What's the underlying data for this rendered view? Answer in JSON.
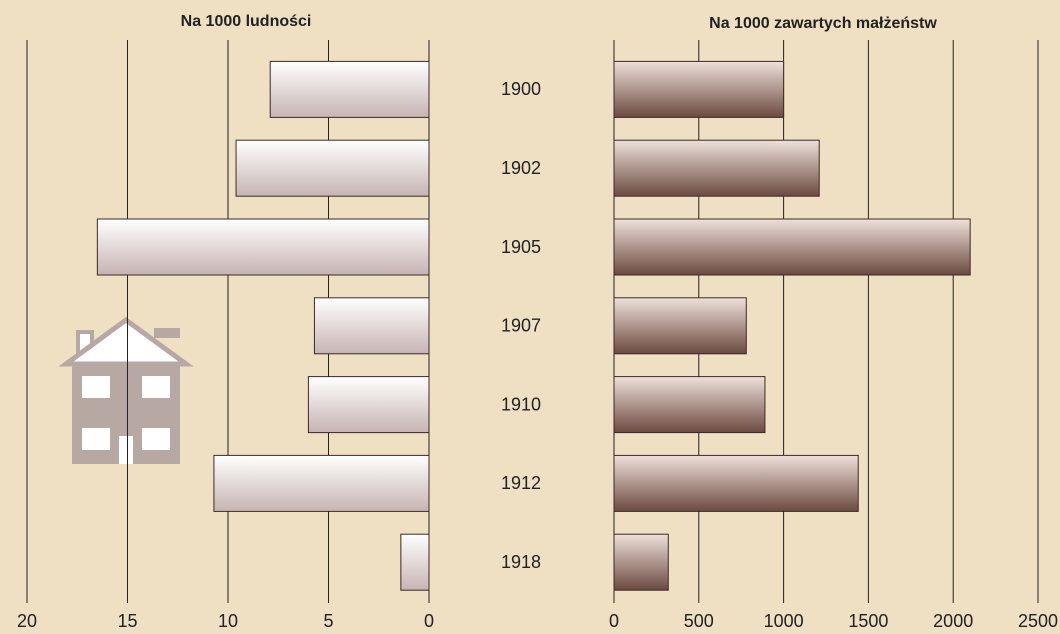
{
  "chart_data": [
    {
      "type": "bar",
      "orientation": "horizontal",
      "title": "Na 1000 ludności",
      "categories": [
        "1900",
        "1902",
        "1905",
        "1907",
        "1910",
        "1912",
        "1918"
      ],
      "values": [
        7.9,
        9.6,
        16.5,
        5.7,
        6.0,
        10.7,
        1.4
      ],
      "gradient": [
        "#ffffff",
        "#c6b4b2"
      ],
      "xlim": [
        20,
        0
      ],
      "xticks": [
        20,
        15,
        10,
        5,
        0
      ],
      "grid": true
    },
    {
      "type": "bar",
      "orientation": "horizontal",
      "title": "Na 1000 zawartych małżeństw",
      "values": [
        1000,
        1210,
        2100,
        780,
        890,
        1440,
        320
      ],
      "gradient": [
        "#efe0da",
        "#6b4a40"
      ],
      "xlim": [
        0,
        2500
      ],
      "xticks": [
        0,
        500,
        1000,
        1500,
        2000,
        2500
      ],
      "grid": true
    }
  ]
}
